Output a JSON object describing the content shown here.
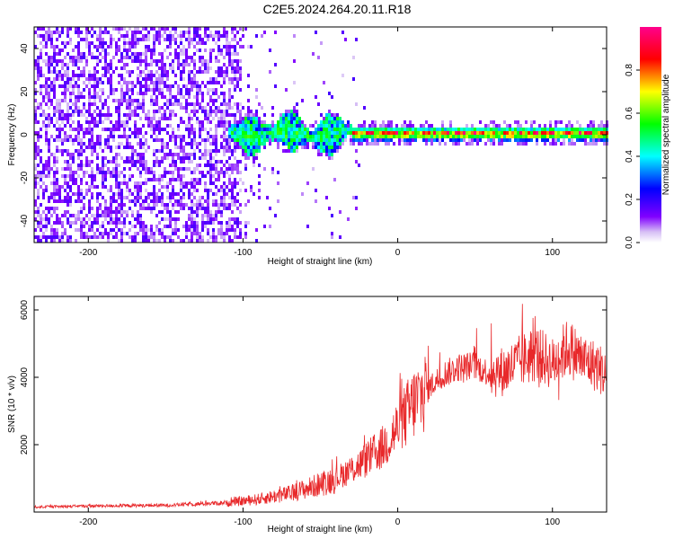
{
  "figure": {
    "title": "C2E5.2024.264.20.11.R18"
  },
  "chart_data": [
    {
      "type": "heatmap",
      "title": "",
      "xlabel": "Height of straight line (km)",
      "ylabel": "Frequency (Hz)",
      "xlim": [
        -235,
        135
      ],
      "ylim": [
        -50,
        50
      ],
      "xticks": [
        -200,
        -100,
        0,
        100
      ],
      "yticks": [
        -40,
        -20,
        0,
        20,
        40
      ],
      "colorbar": {
        "label": "Normalized spectral amplitude",
        "range": [
          0,
          1
        ],
        "ticks": [
          0.0,
          0.2,
          0.4,
          0.6,
          0.8
        ],
        "colors": [
          "#ffffff",
          "#c8a2f0",
          "#8000ff",
          "#0000ff",
          "#00ffff",
          "#00ff00",
          "#ffff00",
          "#ff0000"
        ]
      },
      "regions": [
        {
          "name": "noise",
          "x_range": [
            -235,
            -100
          ],
          "y_range": [
            -50,
            50
          ],
          "amplitude": 0.08
        },
        {
          "name": "signal",
          "x_range": [
            -110,
            135
          ],
          "center_freq": 0.5,
          "amplitude": 0.9
        }
      ]
    },
    {
      "type": "line",
      "title": "",
      "xlabel": "Height of straight line (km)",
      "ylabel": "SNR (10 * v/v)",
      "xlim": [
        -235,
        135
      ],
      "ylim": [
        0,
        6400
      ],
      "xticks": [
        -200,
        -100,
        0,
        100
      ],
      "yticks": [
        2000,
        4000,
        6000
      ],
      "series": [
        {
          "color": "#e8282a",
          "x": [
            -235,
            -200,
            -150,
            -110,
            -90,
            -70,
            -55,
            -40,
            -25,
            -10,
            0,
            10,
            20,
            30,
            40,
            50,
            60,
            70,
            80,
            90,
            100,
            110,
            120,
            130,
            135
          ],
          "y": [
            150,
            180,
            200,
            280,
            380,
            550,
            750,
            1000,
            1400,
            1900,
            2500,
            3200,
            3700,
            4100,
            4300,
            4350,
            4100,
            4200,
            4500,
            4700,
            4400,
            4900,
            4500,
            4300,
            4000
          ]
        }
      ]
    }
  ]
}
